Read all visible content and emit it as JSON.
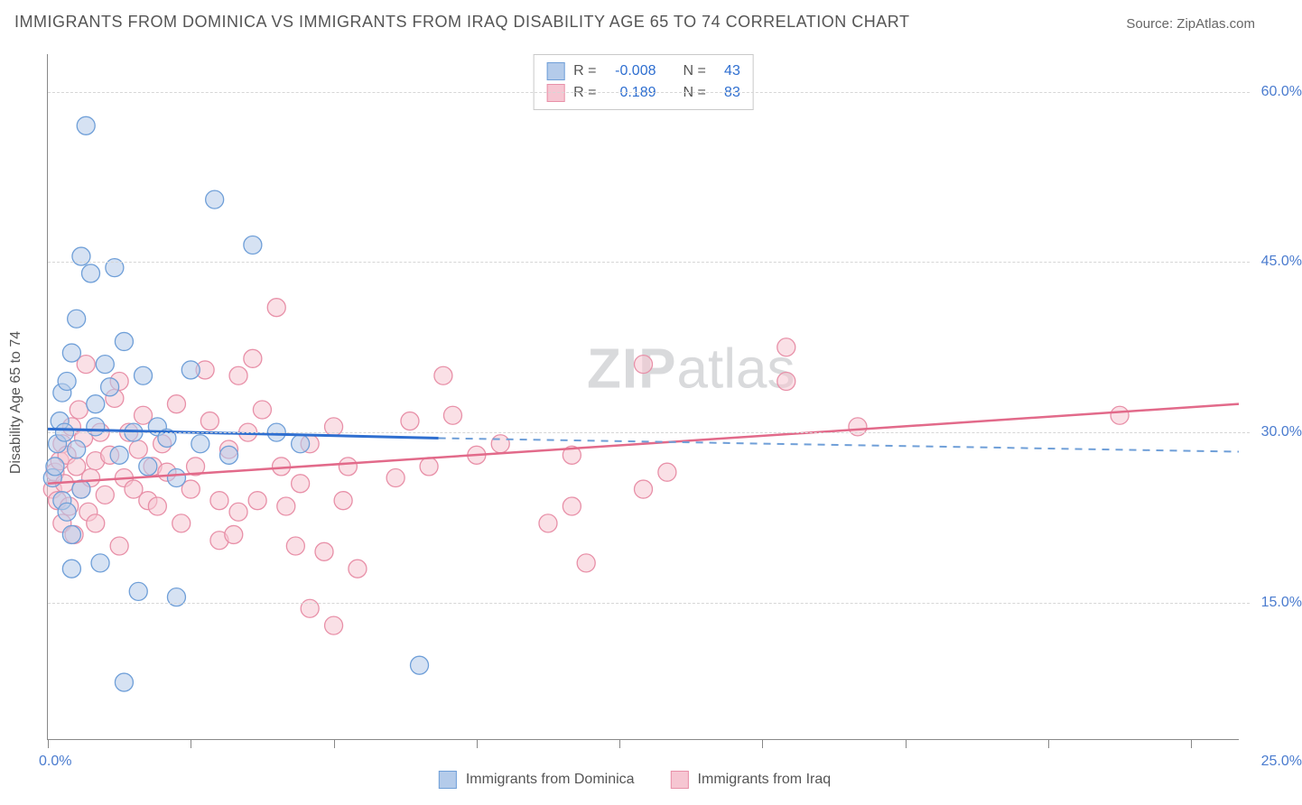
{
  "header": {
    "title": "IMMIGRANTS FROM DOMINICA VS IMMIGRANTS FROM IRAQ DISABILITY AGE 65 TO 74 CORRELATION CHART",
    "source_label": "Source: ",
    "source_name": "ZipAtlas.com"
  },
  "chart": {
    "type": "scatter",
    "yaxis": {
      "title": "Disability Age 65 to 74",
      "min": 3.0,
      "max": 63.3,
      "ticks": [
        15.0,
        30.0,
        45.0,
        60.0
      ],
      "tick_labels": [
        "15.0%",
        "30.0%",
        "45.0%",
        "60.0%"
      ],
      "label_color": "#4b7ccf",
      "label_fontsize": 16
    },
    "xaxis": {
      "min": 0.0,
      "max": 25.0,
      "tick_positions_pct": [
        0,
        12,
        24,
        36,
        48,
        60,
        72,
        84,
        96
      ],
      "left_label": "0.0%",
      "right_label": "25.0%",
      "label_color": "#4b7ccf",
      "label_fontsize": 16
    },
    "grid_color": "#d6d6d6",
    "background_color": "#ffffff",
    "axis_color": "#888888",
    "point_radius": 10,
    "point_opacity": 0.55,
    "series": [
      {
        "id": "dominica",
        "label": "Immigrants from Dominica",
        "fill": "#b4cbea",
        "stroke": "#6f9fd8",
        "stats": {
          "R": "-0.008",
          "N": "43"
        },
        "trend": {
          "solid_color": "#2f6fd0",
          "dashed_color": "#6f9fd8",
          "y_at_xmin": 30.3,
          "y_at_solid_end": 29.5,
          "solid_end_x": 8.2,
          "y_at_xmax": 28.3
        },
        "points": [
          [
            0.1,
            26.0
          ],
          [
            0.15,
            27.0
          ],
          [
            0.2,
            29.0
          ],
          [
            0.25,
            31.0
          ],
          [
            0.3,
            33.5
          ],
          [
            0.3,
            24.0
          ],
          [
            0.35,
            30.0
          ],
          [
            0.4,
            23.0
          ],
          [
            0.4,
            34.5
          ],
          [
            0.5,
            37.0
          ],
          [
            0.5,
            21.0
          ],
          [
            0.6,
            40.0
          ],
          [
            0.6,
            28.5
          ],
          [
            0.7,
            45.5
          ],
          [
            0.7,
            25.0
          ],
          [
            0.8,
            57.0
          ],
          [
            0.9,
            44.0
          ],
          [
            1.0,
            30.5
          ],
          [
            1.0,
            32.5
          ],
          [
            1.1,
            18.5
          ],
          [
            1.2,
            36.0
          ],
          [
            1.3,
            34.0
          ],
          [
            1.4,
            44.5
          ],
          [
            1.5,
            28.0
          ],
          [
            1.6,
            38.0
          ],
          [
            1.8,
            30.0
          ],
          [
            1.9,
            16.0
          ],
          [
            2.0,
            35.0
          ],
          [
            2.1,
            27.0
          ],
          [
            2.3,
            30.5
          ],
          [
            2.5,
            29.5
          ],
          [
            2.7,
            26.0
          ],
          [
            3.0,
            35.5
          ],
          [
            3.2,
            29.0
          ],
          [
            3.5,
            50.5
          ],
          [
            3.8,
            28.0
          ],
          [
            4.3,
            46.5
          ],
          [
            4.8,
            30.0
          ],
          [
            5.3,
            29.0
          ],
          [
            1.6,
            8.0
          ],
          [
            0.5,
            18.0
          ],
          [
            7.8,
            9.5
          ],
          [
            2.7,
            15.5
          ]
        ]
      },
      {
        "id": "iraq",
        "label": "Immigrants from Iraq",
        "fill": "#f6c6d2",
        "stroke": "#e890a8",
        "stats": {
          "R": "0.189",
          "N": "83"
        },
        "trend": {
          "solid_color": "#e26a8a",
          "y_at_xmin": 25.5,
          "y_at_xmax": 32.5
        },
        "points": [
          [
            0.1,
            25.0
          ],
          [
            0.15,
            26.5
          ],
          [
            0.2,
            24.0
          ],
          [
            0.25,
            27.5
          ],
          [
            0.3,
            29.0
          ],
          [
            0.3,
            22.0
          ],
          [
            0.35,
            25.5
          ],
          [
            0.4,
            28.0
          ],
          [
            0.45,
            23.5
          ],
          [
            0.5,
            30.5
          ],
          [
            0.55,
            21.0
          ],
          [
            0.6,
            27.0
          ],
          [
            0.65,
            32.0
          ],
          [
            0.7,
            25.0
          ],
          [
            0.75,
            29.5
          ],
          [
            0.8,
            36.0
          ],
          [
            0.85,
            23.0
          ],
          [
            0.9,
            26.0
          ],
          [
            1.0,
            27.5
          ],
          [
            1.0,
            22.0
          ],
          [
            1.1,
            30.0
          ],
          [
            1.2,
            24.5
          ],
          [
            1.3,
            28.0
          ],
          [
            1.4,
            33.0
          ],
          [
            1.5,
            34.5
          ],
          [
            1.5,
            20.0
          ],
          [
            1.6,
            26.0
          ],
          [
            1.7,
            30.0
          ],
          [
            1.8,
            25.0
          ],
          [
            1.9,
            28.5
          ],
          [
            2.0,
            31.5
          ],
          [
            2.1,
            24.0
          ],
          [
            2.2,
            27.0
          ],
          [
            2.3,
            23.5
          ],
          [
            2.4,
            29.0
          ],
          [
            2.5,
            26.5
          ],
          [
            2.7,
            32.5
          ],
          [
            2.8,
            22.0
          ],
          [
            3.0,
            25.0
          ],
          [
            3.1,
            27.0
          ],
          [
            3.3,
            35.5
          ],
          [
            3.4,
            31.0
          ],
          [
            3.6,
            24.0
          ],
          [
            3.6,
            20.5
          ],
          [
            3.8,
            28.5
          ],
          [
            4.0,
            23.0
          ],
          [
            4.0,
            35.0
          ],
          [
            4.2,
            30.0
          ],
          [
            4.3,
            36.5
          ],
          [
            4.4,
            24.0
          ],
          [
            4.5,
            32.0
          ],
          [
            4.8,
            41.0
          ],
          [
            4.9,
            27.0
          ],
          [
            5.0,
            23.5
          ],
          [
            5.2,
            20.0
          ],
          [
            5.3,
            25.5
          ],
          [
            5.5,
            29.0
          ],
          [
            5.8,
            19.5
          ],
          [
            6.0,
            30.5
          ],
          [
            6.2,
            24.0
          ],
          [
            6.3,
            27.0
          ],
          [
            6.5,
            18.0
          ],
          [
            6.0,
            13.0
          ],
          [
            5.5,
            14.5
          ],
          [
            7.3,
            26.0
          ],
          [
            7.6,
            31.0
          ],
          [
            8.0,
            27.0
          ],
          [
            8.3,
            35.0
          ],
          [
            8.5,
            31.5
          ],
          [
            9.0,
            28.0
          ],
          [
            9.5,
            29.0
          ],
          [
            11.0,
            28.0
          ],
          [
            10.5,
            22.0
          ],
          [
            11.3,
            18.5
          ],
          [
            11.0,
            23.5
          ],
          [
            12.5,
            25.0
          ],
          [
            12.5,
            36.0
          ],
          [
            13.0,
            26.5
          ],
          [
            15.5,
            37.5
          ],
          [
            15.5,
            34.5
          ],
          [
            17.0,
            30.5
          ],
          [
            22.5,
            31.5
          ],
          [
            3.9,
            21.0
          ]
        ]
      }
    ]
  },
  "stats_legend": {
    "R_label": "R =",
    "N_label": "N ="
  },
  "watermark": {
    "zip": "ZIP",
    "rest": "atlas"
  }
}
